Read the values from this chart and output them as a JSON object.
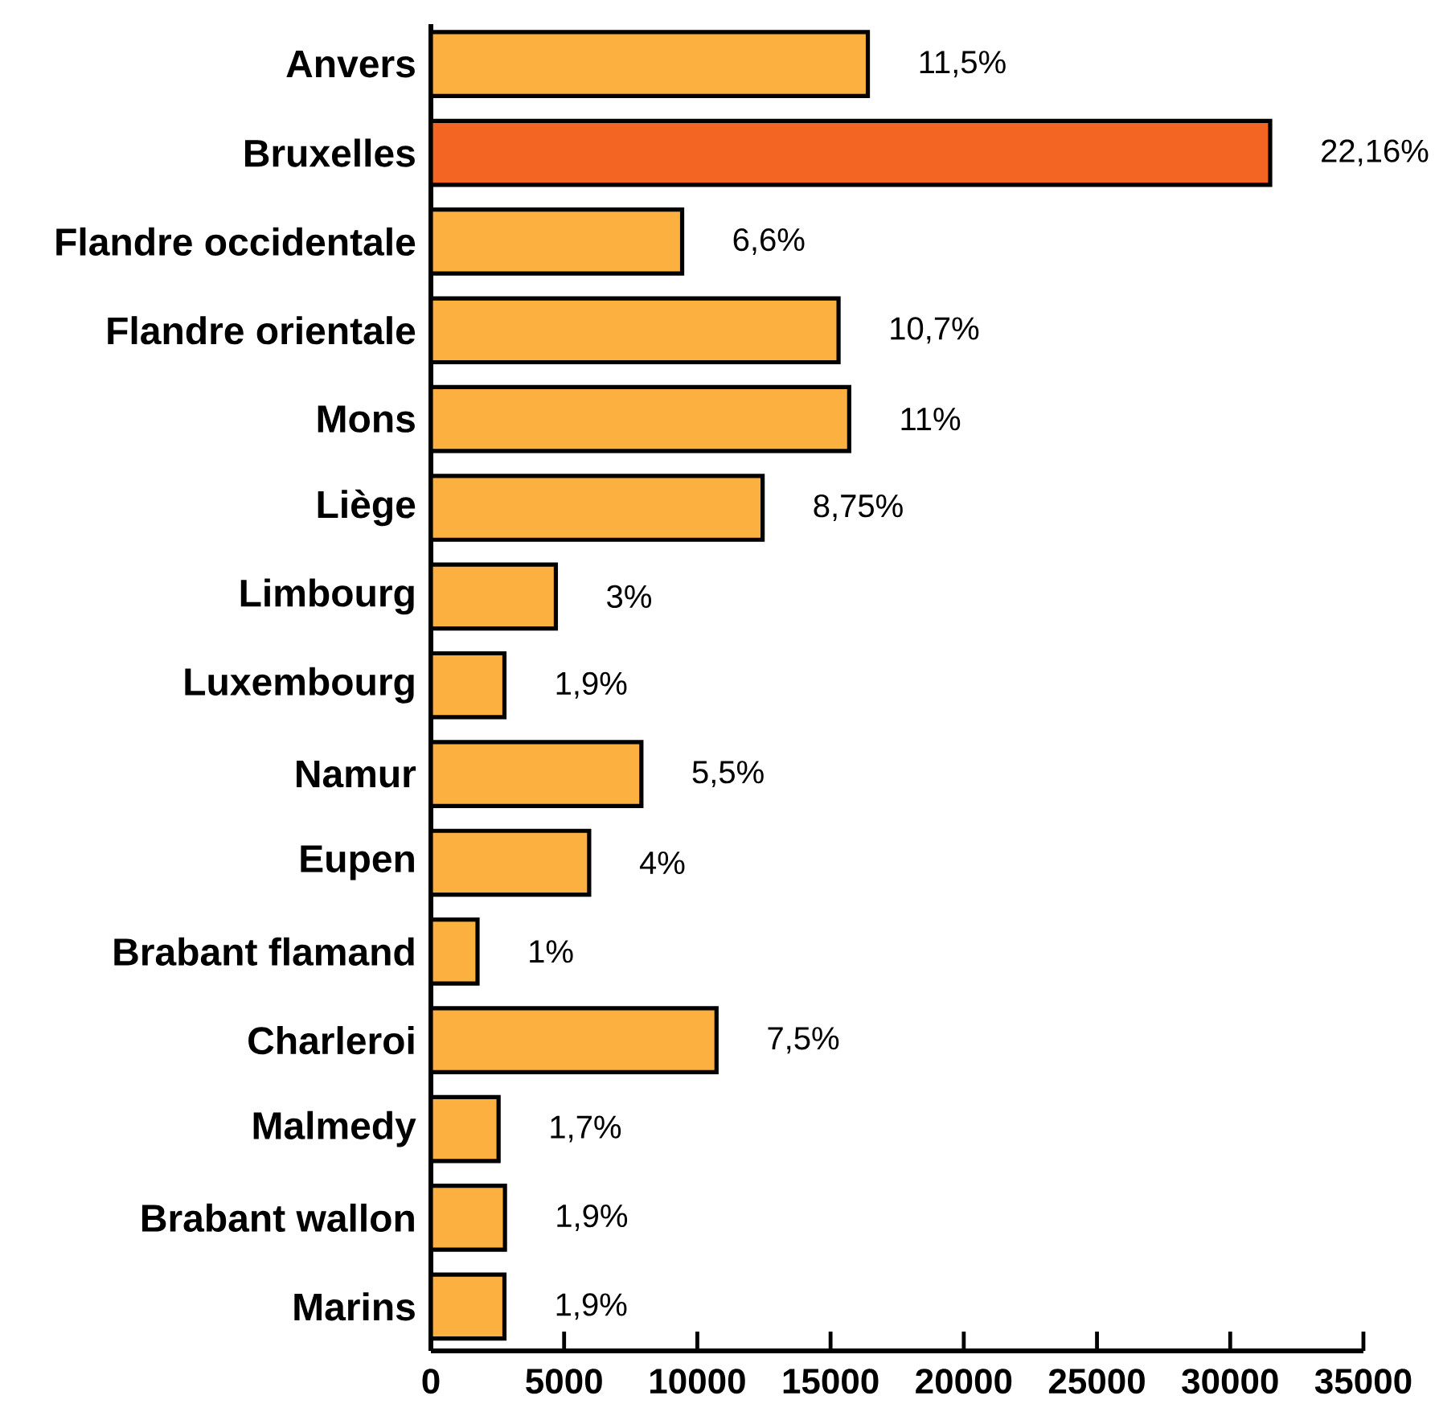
{
  "chart_data": {
    "type": "bar",
    "orientation": "horizontal",
    "categories": [
      "Anvers",
      "Bruxelles",
      "Flandre occidentale",
      "Flandre orientale",
      "Mons",
      "Liège",
      "Limbourg",
      "Luxembourg",
      "Namur",
      "Eupen",
      "Brabant flamand",
      "Charleroi",
      "Malmedy",
      "Brabant wallon",
      "Marins"
    ],
    "values": [
      16400,
      31500,
      9430,
      15300,
      15700,
      12450,
      4690,
      2760,
      7900,
      5940,
      1750,
      10720,
      2540,
      2780,
      2760
    ],
    "colors": [
      "#fbb040",
      "#f26522",
      "#fbb040",
      "#fbb040",
      "#fbb040",
      "#fbb040",
      "#fbb040",
      "#fbb040",
      "#fbb040",
      "#fbb040",
      "#fbb040",
      "#fbb040",
      "#fbb040",
      "#fbb040",
      "#fbb040"
    ],
    "annotations": [
      {
        "text": "11,5%",
        "x": 16400,
        "y": "Anvers"
      },
      {
        "text": "22,16%",
        "x": 31500,
        "y": "Bruxelles"
      },
      {
        "text": "6,6%",
        "x": 9430,
        "y": "Flandre occidentale"
      },
      {
        "text": "10,7%",
        "x": 15300,
        "y": "Flandre orientale"
      },
      {
        "text": "11%",
        "x": 15700,
        "y": "Mons"
      },
      {
        "text": "8,75%",
        "x": 12450,
        "y": "Liège"
      },
      {
        "text": "3%",
        "x": 4690,
        "y": "Limbourg"
      },
      {
        "text": "1,9%",
        "x": 2760,
        "y": "Luxembourg"
      },
      {
        "text": "5,5%",
        "x": 7900,
        "y": "Namur"
      },
      {
        "text": "4%",
        "x": 5940,
        "y": "Eupen"
      },
      {
        "text": "1%",
        "x": 1750,
        "y": "Brabant flamand"
      },
      {
        "text": "7,5%",
        "x": 10720,
        "y": "Charleroi"
      },
      {
        "text": "1,7%",
        "x": 2540,
        "y": "Malmedy"
      },
      {
        "text": "1,9%",
        "x": 2780,
        "y": "Brabant wallon"
      },
      {
        "text": "1,9%",
        "x": 2760,
        "y": "Marins"
      }
    ],
    "xlim": [
      0,
      35000
    ],
    "xticks": [
      0,
      5000,
      10000,
      15000,
      20000,
      25000,
      30000,
      35000
    ]
  }
}
